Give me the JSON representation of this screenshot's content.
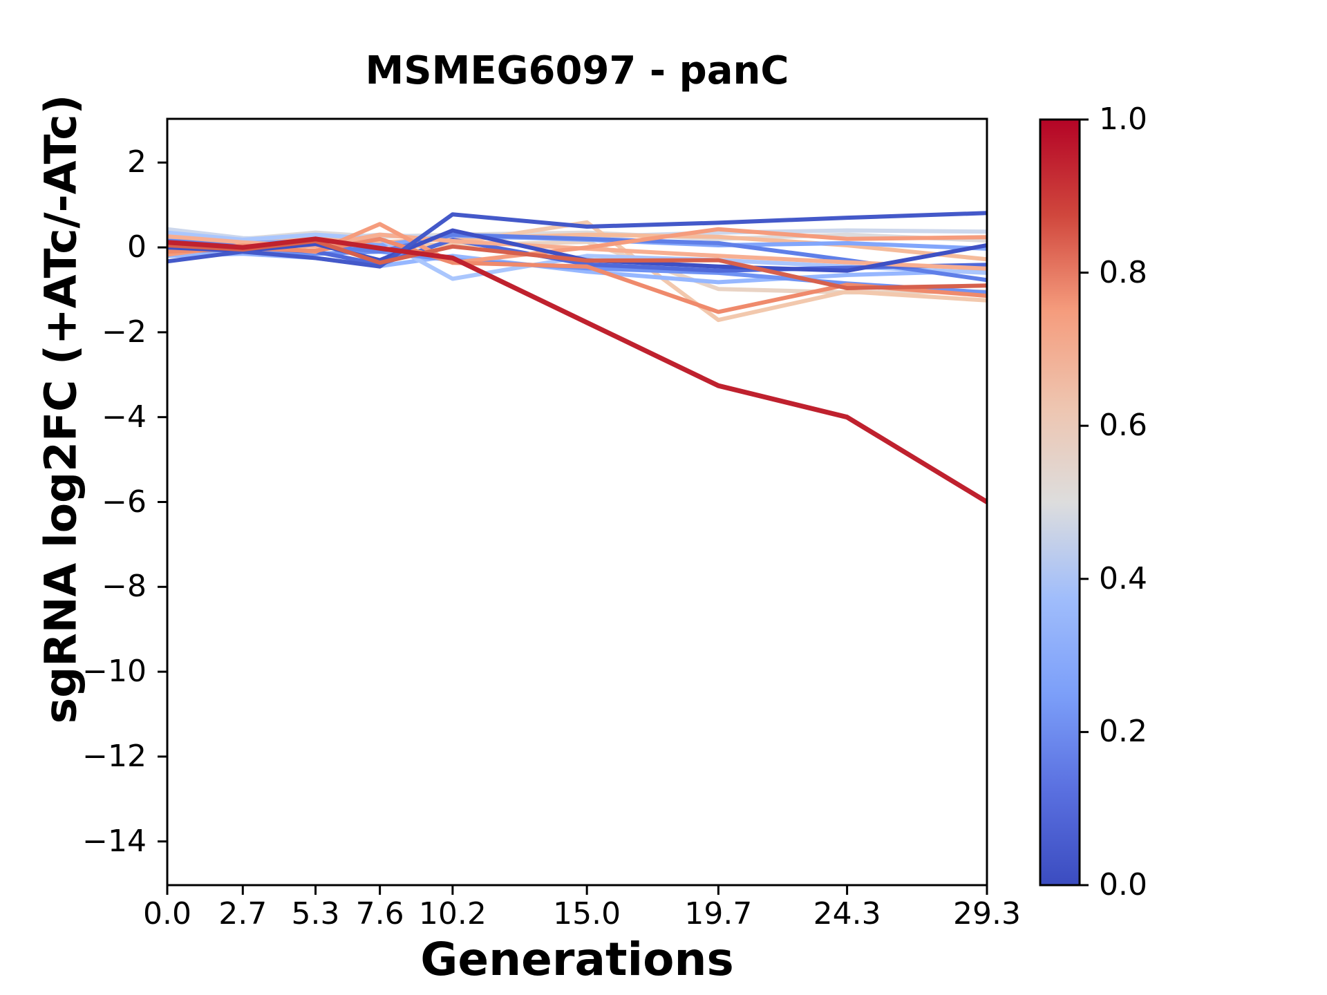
{
  "chart_data": {
    "type": "line",
    "title": "MSMEG6097 - panC",
    "xlabel": "Generations",
    "ylabel": "sgRNA log2FC (+ATc/-ATc)",
    "grid": false,
    "background": "#ffffff",
    "axes_color": "#000000",
    "xlim": [
      0,
      29.3
    ],
    "ylim": [
      -15.03,
      3.03
    ],
    "x": [
      0.0,
      2.7,
      5.3,
      7.6,
      10.2,
      15.0,
      19.7,
      24.3,
      29.3
    ],
    "xtick_labels": [
      "0.0",
      "2.7",
      "5.3",
      "7.6",
      "10.2",
      "15.0",
      "19.7",
      "24.3",
      "29.3"
    ],
    "ytick_values": [
      2,
      0,
      -2,
      -4,
      -6,
      -8,
      -10,
      -12,
      -14
    ],
    "ytick_labels": [
      "2",
      "0",
      "−2",
      "−4",
      "−6",
      "−8",
      "−10",
      "−12",
      "−14"
    ],
    "series": [
      {
        "colormap_value": 0.52,
        "color": "#dcdadb",
        "values": [
          0.3,
          0.2,
          0.35,
          0.25,
          0.3,
          0.35,
          0.2,
          0.3,
          0.16
        ]
      },
      {
        "colormap_value": 0.47,
        "color": "#ccd7ec",
        "values": [
          0.43,
          0.22,
          0.18,
          0.3,
          0.22,
          0.25,
          0.35,
          0.4,
          0.37
        ]
      },
      {
        "colormap_value": 0.57,
        "color": "#e9d3c4",
        "values": [
          0.1,
          0.05,
          0.15,
          0.1,
          0.05,
          0.13,
          -0.98,
          -1.06,
          -1.04
        ]
      },
      {
        "colormap_value": 0.62,
        "color": "#f2c8ad",
        "values": [
          -0.07,
          -0.12,
          0.05,
          -0.05,
          0.1,
          0.59,
          -1.71,
          -1.04,
          -1.25
        ]
      },
      {
        "colormap_value": 0.66,
        "color": "#f5bb9b",
        "values": [
          0.18,
          0.08,
          0.22,
          0.12,
          0.2,
          0.3,
          0.25,
          0.05,
          -0.28
        ]
      },
      {
        "colormap_value": 0.3,
        "color": "#82a6fb",
        "values": [
          0.2,
          0.1,
          0.15,
          0.05,
          0.28,
          0.18,
          0.05,
          0.1,
          -0.03
        ]
      },
      {
        "colormap_value": 0.37,
        "color": "#96b7ff",
        "values": [
          -0.2,
          -0.15,
          -0.25,
          -0.44,
          -0.2,
          -0.57,
          -0.82,
          -0.65,
          -0.55
        ]
      },
      {
        "colormap_value": 0.42,
        "color": "#aac6fd",
        "values": [
          0.35,
          0.18,
          0.3,
          0.2,
          -0.74,
          -0.2,
          -0.3,
          -0.45,
          -0.6
        ]
      },
      {
        "colormap_value": 0.24,
        "color": "#6f92f3",
        "values": [
          -0.1,
          -0.05,
          -0.15,
          -0.1,
          -0.3,
          -0.49,
          -0.6,
          -0.85,
          -1.06
        ]
      },
      {
        "colormap_value": 0.18,
        "color": "#5f7fe8",
        "values": [
          0.15,
          0.08,
          0.05,
          -0.1,
          0.3,
          0.2,
          0.1,
          -0.3,
          -0.77
        ]
      },
      {
        "colormap_value": 0.12,
        "color": "#5069d9",
        "values": [
          -0.05,
          0.0,
          -0.1,
          -0.4,
          0.18,
          -0.4,
          -0.55,
          -0.48,
          -0.41
        ]
      },
      {
        "colormap_value": 0.7,
        "color": "#f7ae91",
        "values": [
          0.26,
          0.12,
          0.02,
          0.3,
          0.15,
          -0.03,
          -0.2,
          -0.35,
          -0.5
        ]
      },
      {
        "colormap_value": 0.76,
        "color": "#f59c7d",
        "values": [
          -0.17,
          0.05,
          -0.1,
          0.55,
          -0.36,
          0.0,
          0.43,
          0.2,
          0.24
        ]
      },
      {
        "colormap_value": 0.8,
        "color": "#ef8a6c",
        "values": [
          -0.1,
          -0.02,
          -0.08,
          0.2,
          -0.36,
          -0.45,
          -1.52,
          -0.88,
          -1.14
        ]
      },
      {
        "colormap_value": 0.02,
        "color": "#3e50c4",
        "values": [
          0.0,
          -0.08,
          0.08,
          -0.3,
          0.4,
          -0.3,
          -0.45,
          -0.55,
          0.05
        ]
      },
      {
        "colormap_value": 0.06,
        "color": "#4459c9",
        "values": [
          -0.33,
          -0.1,
          -0.25,
          -0.45,
          0.78,
          0.49,
          0.58,
          0.7,
          0.81
        ]
      },
      {
        "colormap_value": 0.87,
        "color": "#d6604d",
        "values": [
          0.05,
          -0.05,
          0.15,
          -0.36,
          0.02,
          -0.31,
          -0.3,
          -0.96,
          -0.9
        ]
      },
      {
        "colormap_value": 1.0,
        "color": "#bf212e",
        "width": 7,
        "values": [
          0.12,
          0.0,
          0.2,
          -0.02,
          -0.25,
          -1.77,
          -3.26,
          -4.0,
          -6.0
        ]
      }
    ],
    "colorbar": {
      "cmap": "coolwarm",
      "tick_values": [
        1.0,
        0.8,
        0.6,
        0.4,
        0.2,
        0.0
      ],
      "tick_labels": [
        "1.0",
        "0.8",
        "0.6",
        "0.4",
        "0.2",
        "0.0"
      ],
      "gradient": [
        {
          "offset": "0%",
          "color": "#b40426"
        },
        {
          "offset": "12.5%",
          "color": "#d0473d"
        },
        {
          "offset": "25%",
          "color": "#f59c7d"
        },
        {
          "offset": "37.5%",
          "color": "#eec5b0"
        },
        {
          "offset": "50%",
          "color": "#dddddd"
        },
        {
          "offset": "62.5%",
          "color": "#a0bdfb"
        },
        {
          "offset": "75%",
          "color": "#7c9ff9"
        },
        {
          "offset": "87.5%",
          "color": "#5a70e0"
        },
        {
          "offset": "100%",
          "color": "#3b4cc0"
        }
      ]
    }
  }
}
